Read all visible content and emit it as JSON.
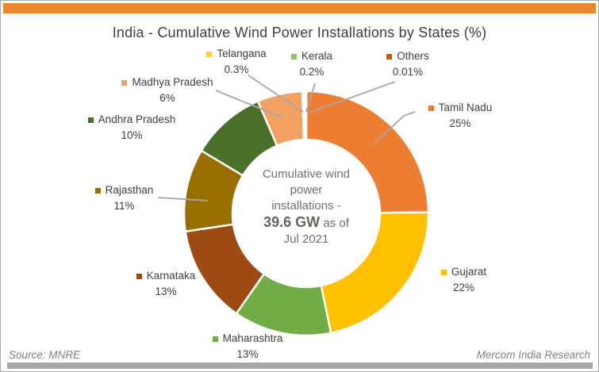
{
  "header": {
    "accent_bar_color": "#E8862B"
  },
  "footer": {
    "source": "Source: MNRE",
    "credit": "Mercom India Research",
    "bar_color": "#A6A6A6"
  },
  "chart_data": {
    "type": "pie",
    "donut": true,
    "title": "India - Cumulative Wind Power Installations by States (%)",
    "start_angle_deg": 0,
    "direction": "clockwise",
    "legend_position": "callout-labels-around-donut",
    "leader_line_color": "#A6A6A6",
    "slices": [
      {
        "label": "Tamil Nadu",
        "value": 25,
        "pct_label": "25%",
        "color": "#ED7D31"
      },
      {
        "label": "Gujarat",
        "value": 22,
        "pct_label": "22%",
        "color": "#FFC000"
      },
      {
        "label": "Maharashtra",
        "value": 13,
        "pct_label": "13%",
        "color": "#70AD47"
      },
      {
        "label": "Karnataka",
        "value": 13,
        "pct_label": "13%",
        "color": "#9E4B13"
      },
      {
        "label": "Rajasthan",
        "value": 11,
        "pct_label": "11%",
        "color": "#997000"
      },
      {
        "label": "Andhra Pradesh",
        "value": 10,
        "pct_label": "10%",
        "color": "#4A7029"
      },
      {
        "label": "Madhya Pradesh",
        "value": 6,
        "pct_label": "6%",
        "color": "#F2A163"
      },
      {
        "label": "Telangana",
        "value": 0.3,
        "pct_label": "0.3%",
        "color": "#FFCE45"
      },
      {
        "label": "Kerala",
        "value": 0.2,
        "pct_label": "0.2%",
        "color": "#8CC168"
      },
      {
        "label": "Others",
        "value": 0.01,
        "pct_label": "0.01%",
        "color": "#C55A11"
      }
    ],
    "center_label": {
      "line1": "Cumulative wind",
      "line2": "power",
      "line3": "installations -",
      "gw": "39.6 GW",
      "asof": " as of",
      "line5": "Jul 2021"
    }
  }
}
